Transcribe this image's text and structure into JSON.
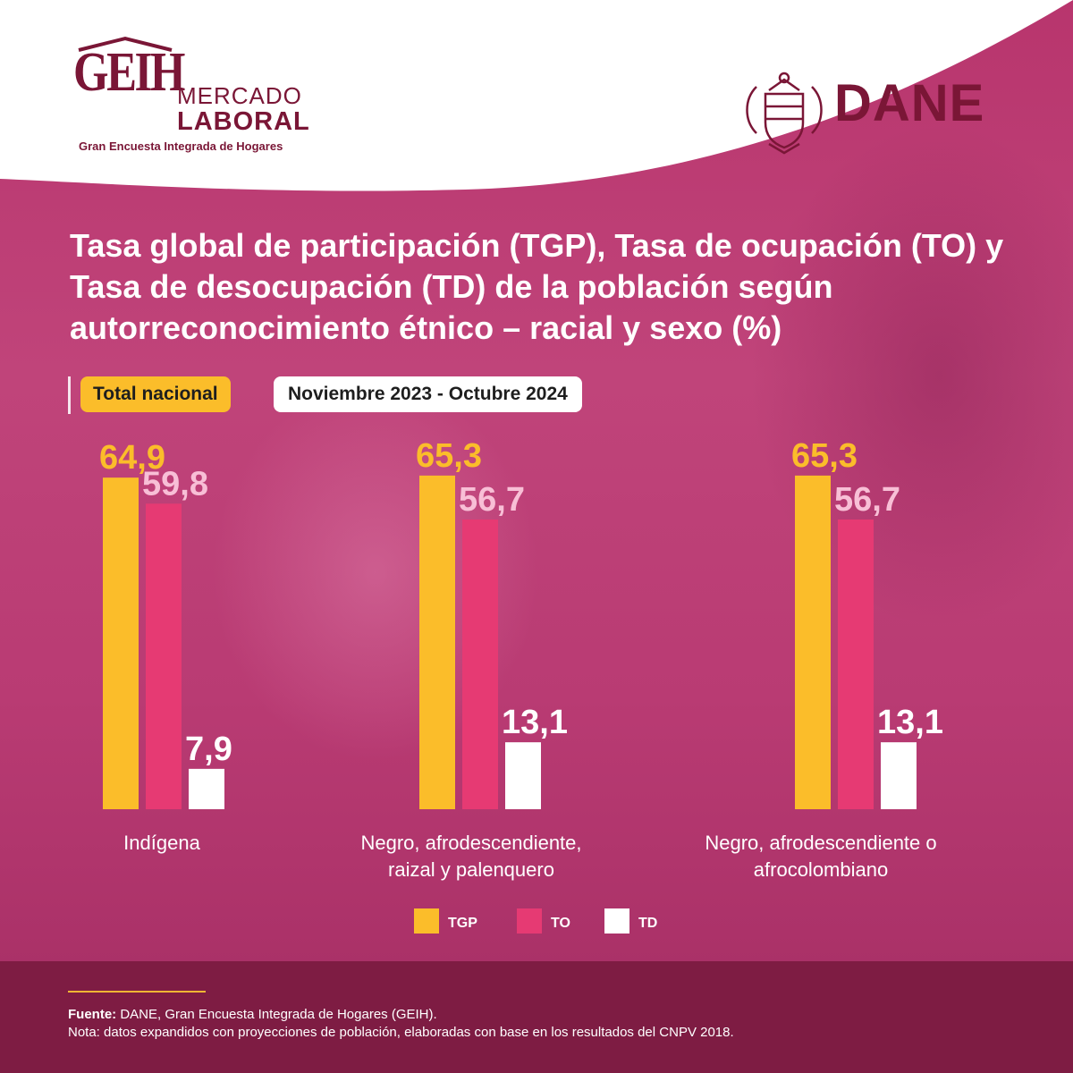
{
  "header": {
    "geih_logo": {
      "acronym": "GEIH",
      "line1": "MERCADO",
      "line2": "LABORAL",
      "subtitle": "Gran Encuesta Integrada de Hogares"
    },
    "dane_logo": {
      "name": "DANE",
      "icon": "coat-of-arms-icon"
    }
  },
  "title": "Tasa global de participación (TGP), Tasa de ocupación (TO) y Tasa de desocupación (TD) de la población según autorreconocimiento étnico – racial y sexo (%)",
  "tags": {
    "region": "Total nacional",
    "period": "Noviembre 2023 - Octubre 2024"
  },
  "colors": {
    "TGP": "#fbbd2a",
    "TO": "#e63a73",
    "TD": "#ffffff",
    "label_TGP": "#fbbd2a",
    "label_TO": "#f8bfd6",
    "label_TD": "#ffffff",
    "brand": "#7a1636"
  },
  "chart_data": {
    "type": "bar",
    "categories": [
      [
        "Indígena"
      ],
      [
        "Negro, afrodescendiente,",
        "raizal y palenquero"
      ],
      [
        "Negro, afrodescendiente o",
        "afrocolombiano"
      ]
    ],
    "series": [
      {
        "name": "TGP",
        "values": [
          64.9,
          65.3,
          65.3
        ],
        "labels": [
          "64,9",
          "65,3",
          "65,3"
        ]
      },
      {
        "name": "TO",
        "values": [
          59.8,
          56.7,
          56.7
        ],
        "labels": [
          "59,8",
          "56,7",
          "56,7"
        ]
      },
      {
        "name": "TD",
        "values": [
          7.9,
          13.1,
          13.1
        ],
        "labels": [
          "7,9",
          "13,1",
          "13,1"
        ]
      }
    ],
    "ylim": [
      0,
      70
    ],
    "grid": false,
    "legend": "bottom"
  },
  "footer": {
    "source_label": "Fuente:",
    "source_text": " DANE, Gran Encuesta Integrada de Hogares (GEIH).",
    "note": "Nota: datos expandidos con proyecciones de población, elaboradas con base en los resultados del CNPV 2018."
  }
}
